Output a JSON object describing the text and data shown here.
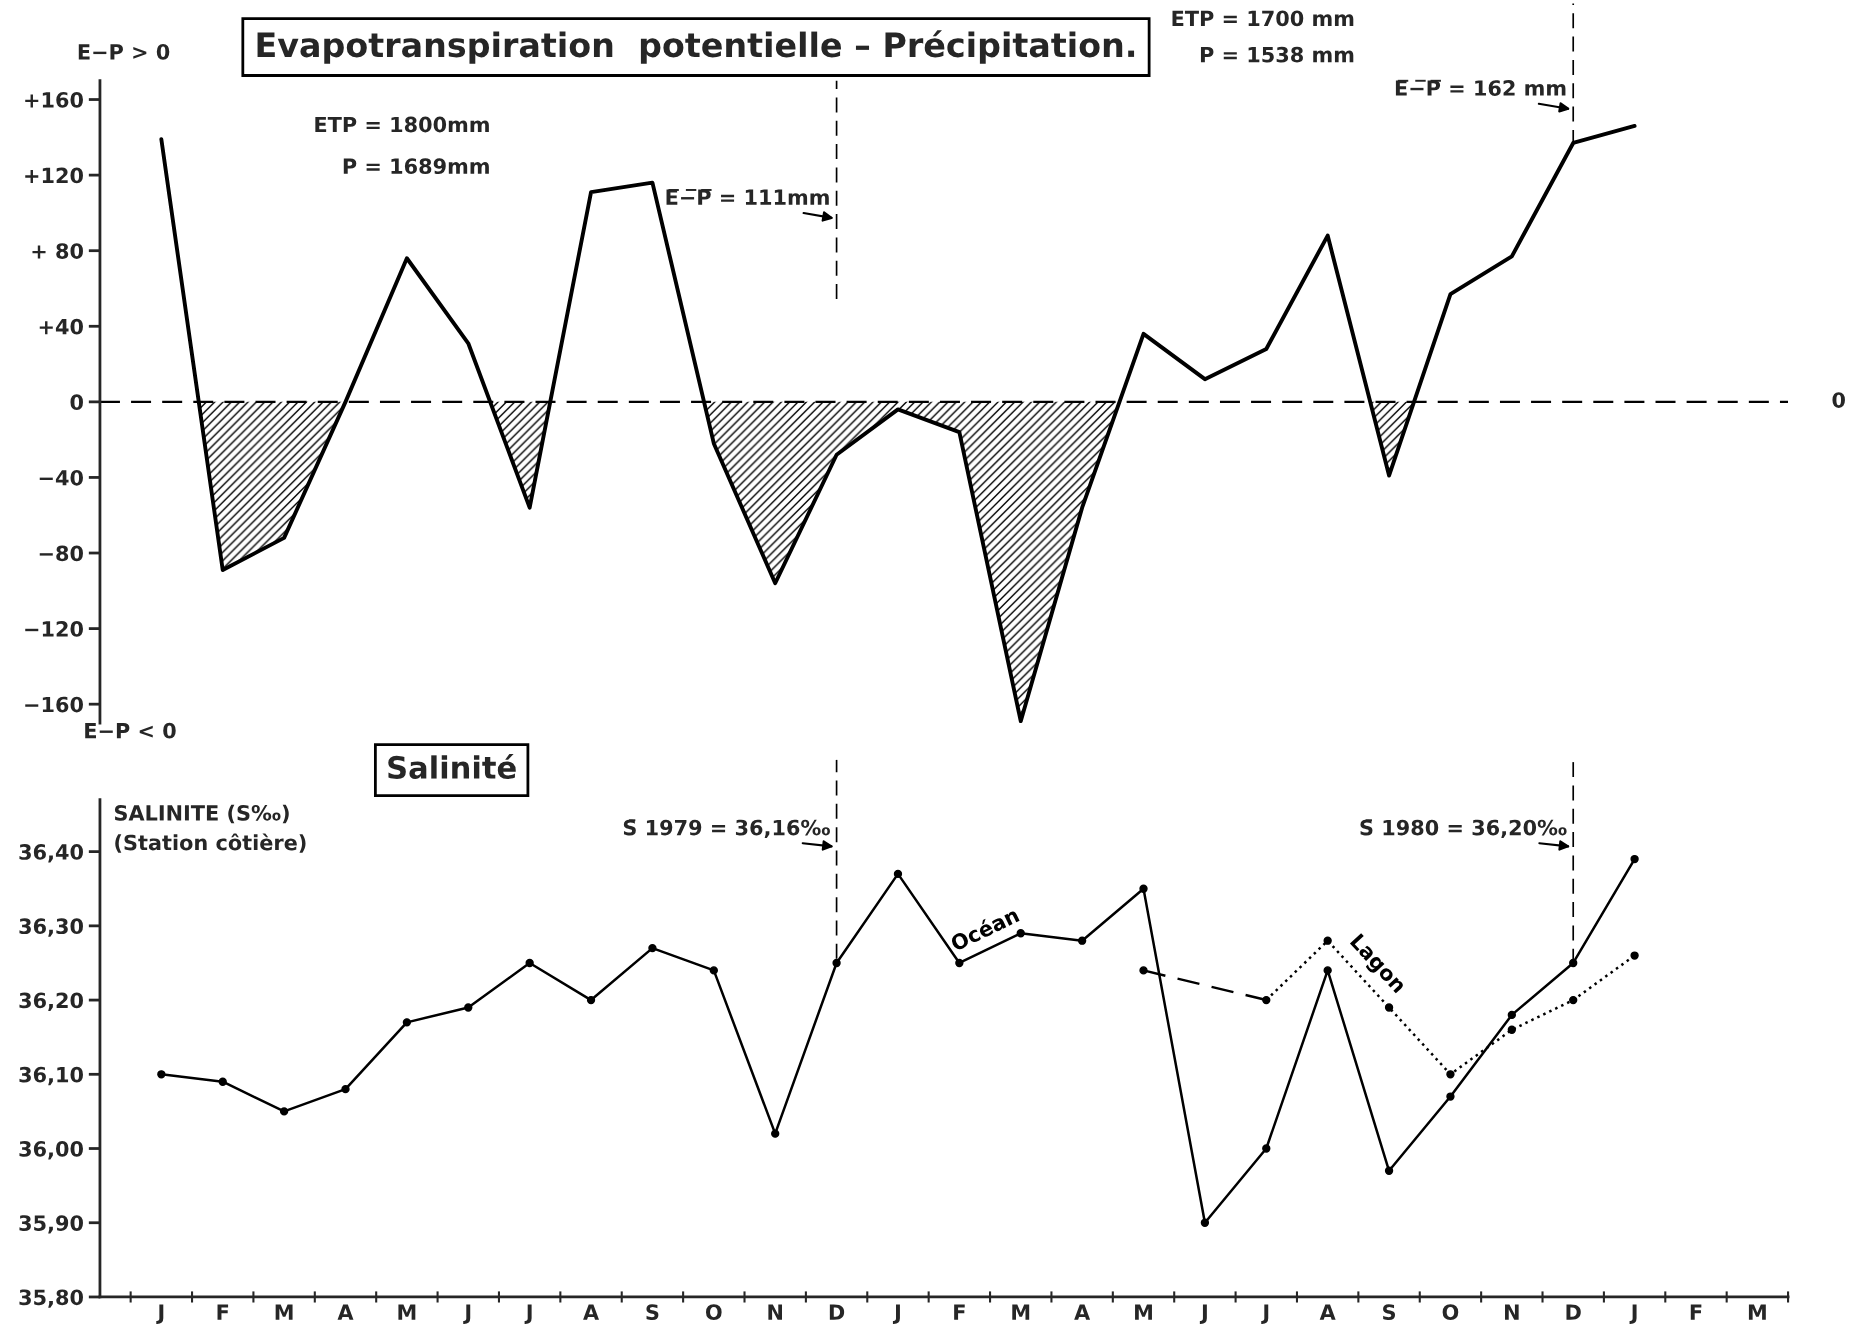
{
  "chart_data": [
    {
      "type": "area",
      "title": "Evapotranspiration  potentielle – Précipitation.",
      "ylabel": "E−P > 0",
      "categories": [
        null,
        null,
        null,
        null,
        null,
        null,
        null,
        null,
        null,
        null,
        null,
        null,
        null,
        null,
        null,
        null,
        null,
        null,
        null,
        null,
        null,
        null,
        null,
        null,
        null,
        null,
        null
      ],
      "series": [
        {
          "type": "line",
          "color": "#000000",
          "values": [
            139,
            -89,
            -72,
            0,
            76,
            31,
            -56,
            111,
            116,
            -22,
            -96,
            -28,
            -4,
            -16,
            -169,
            -56,
            36,
            12,
            28,
            88,
            -39,
            57,
            77,
            137,
            146,
            null,
            null
          ]
        }
      ],
      "ylim": [
        -170,
        170
      ],
      "yticks": [
        {
          "value": 160,
          "label": "+160"
        },
        {
          "value": 120,
          "label": "+120"
        },
        {
          "value": 80,
          "label": "+ 80"
        },
        {
          "value": 40,
          "label": "+40"
        },
        0,
        {
          "value": -40,
          "label": "−40"
        },
        {
          "value": -80,
          "label": "−80"
        },
        {
          "value": -120,
          "label": "−120"
        },
        {
          "value": -160,
          "label": "−160"
        }
      ],
      "tick_labels": "y",
      "marker": "none",
      "grid": false,
      "legend": false,
      "ref_lines": [
        {
          "axis": "y",
          "value": 0,
          "label": "0",
          "line_style": "dashed",
          "color": "#000000"
        }
      ],
      "annotations": [
        "ETP = 1800mm",
        "P = 1689mm",
        "ETP = 1700 mm",
        "P = 1538 mm",
        "E−P < 0",
        "E̅−̅P̅ = 111mm",
        "E̅−̅P̅ = 162 mm"
      ]
    },
    {
      "type": "line",
      "title": "Salinité",
      "ylabel": "SALINITE (S‰)\n(Station côtière)",
      "categories": [
        "J",
        "F",
        "M",
        "A",
        "M",
        "J",
        "J",
        "A",
        "S",
        "O",
        "N",
        "D",
        "J",
        "F",
        "M",
        "A",
        "M",
        "J",
        "J",
        "A",
        "S",
        "O",
        "N",
        "D",
        "J",
        "F",
        "M"
      ],
      "series": [
        {
          "name": "Océan",
          "color": "#000000",
          "line_style": "solid",
          "values": [
            36.1,
            36.09,
            36.05,
            36.08,
            36.17,
            36.19,
            36.25,
            36.2,
            36.27,
            36.24,
            36.02,
            36.25,
            36.37,
            36.25,
            36.29,
            36.28,
            36.35,
            35.9,
            36.0,
            36.24,
            35.97,
            36.07,
            36.18,
            36.25,
            36.39,
            null,
            null
          ]
        },
        {
          "color": "#000000",
          "line_style": "dashed",
          "marker": "none",
          "values": [
            null,
            null,
            null,
            null,
            null,
            null,
            null,
            null,
            null,
            null,
            null,
            null,
            null,
            null,
            null,
            null,
            36.24,
            36.22,
            36.2,
            null,
            null,
            null,
            null,
            null,
            null,
            null,
            null
          ]
        },
        {
          "name": "Lagon",
          "color": "#000000",
          "line_style": "dotted",
          "values": [
            null,
            null,
            null,
            null,
            null,
            null,
            null,
            null,
            null,
            null,
            null,
            null,
            null,
            null,
            null,
            null,
            36.24,
            null,
            36.2,
            36.28,
            36.19,
            36.1,
            36.16,
            36.2,
            36.26,
            null,
            null
          ]
        }
      ],
      "ylim": [
        35.8,
        36.47
      ],
      "yticks": [
        {
          "value": 35.8,
          "label": "35,80"
        },
        {
          "value": 35.9,
          "label": "35,90"
        },
        {
          "value": 36.0,
          "label": "36,00"
        },
        {
          "value": 36.1,
          "label": "36,10"
        },
        {
          "value": 36.2,
          "label": "36,20"
        },
        {
          "value": 36.3,
          "label": "36,30"
        },
        {
          "value": 36.4,
          "label": "36,40"
        }
      ],
      "marker": "circle",
      "grid": false,
      "legend": false,
      "annotations": [
        "S̄ 1979 = 36,16‰",
        "S̄ 1980 = 36,20‰"
      ]
    }
  ]
}
